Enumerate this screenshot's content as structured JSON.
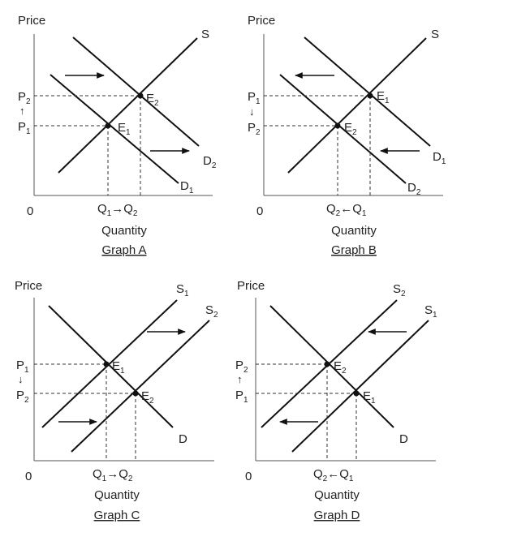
{
  "graphs": [
    {
      "title": "Graph A",
      "y_axis_label": "Price",
      "x_axis_label": "Quantity",
      "origin": "0",
      "price_labels": {
        "upper": [
          "P",
          "2"
        ],
        "lower": [
          "P",
          "1"
        ],
        "arrow": "↑"
      },
      "quantity_labels": {
        "left": [
          "Q",
          "1"
        ],
        "right": [
          "Q",
          "2"
        ],
        "arrow": "→"
      },
      "curves": {
        "S": [
          "S",
          ""
        ],
        "D_old": [
          "D",
          "1"
        ],
        "D_new": [
          "D",
          "2"
        ]
      },
      "equilibria": {
        "upper": [
          "E",
          "2"
        ],
        "lower": [
          "E",
          "1"
        ]
      }
    },
    {
      "title": "Graph B",
      "y_axis_label": "Price",
      "x_axis_label": "Quantity",
      "origin": "0",
      "price_labels": {
        "upper": [
          "P",
          "1"
        ],
        "lower": [
          "P",
          "2"
        ],
        "arrow": "↓"
      },
      "quantity_labels": {
        "left": [
          "Q",
          "2"
        ],
        "right": [
          "Q",
          "1"
        ],
        "arrow": "←"
      },
      "curves": {
        "S": [
          "S",
          ""
        ],
        "D_old": [
          "D",
          "1"
        ],
        "D_new": [
          "D",
          "2"
        ]
      },
      "equilibria": {
        "upper": [
          "E",
          "1"
        ],
        "lower": [
          "E",
          "2"
        ]
      }
    },
    {
      "title": "Graph C",
      "y_axis_label": "Price",
      "x_axis_label": "Quantity",
      "origin": "0",
      "price_labels": {
        "upper": [
          "P",
          "1"
        ],
        "lower": [
          "P",
          "2"
        ],
        "arrow": "↓"
      },
      "quantity_labels": {
        "left": [
          "Q",
          "1"
        ],
        "right": [
          "Q",
          "2"
        ],
        "arrow": "→"
      },
      "curves": {
        "S_old": [
          "S",
          "1"
        ],
        "S_new": [
          "S",
          "2"
        ],
        "D": [
          "D",
          ""
        ]
      },
      "equilibria": {
        "upper": [
          "E",
          "1"
        ],
        "lower": [
          "E",
          "2"
        ]
      }
    },
    {
      "title": "Graph D",
      "y_axis_label": "Price",
      "x_axis_label": "Quantity",
      "origin": "0",
      "price_labels": {
        "upper": [
          "P",
          "2"
        ],
        "lower": [
          "P",
          "1"
        ],
        "arrow": "↑"
      },
      "quantity_labels": {
        "left": [
          "Q",
          "2"
        ],
        "right": [
          "Q",
          "1"
        ],
        "arrow": "←"
      },
      "curves": {
        "S_new": [
          "S",
          "2"
        ],
        "S_old": [
          "S",
          "1"
        ],
        "D": [
          "D",
          ""
        ]
      },
      "equilibria": {
        "upper": [
          "E",
          "2"
        ],
        "lower": [
          "E",
          "1"
        ]
      }
    }
  ]
}
